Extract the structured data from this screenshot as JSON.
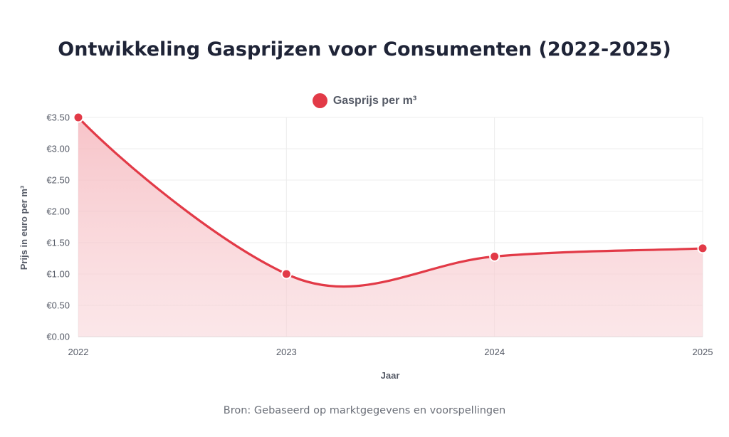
{
  "title": "Ontwikkeling Gasprijzen voor Consumenten (2022-2025)",
  "source": "Bron: Gebaseerd op marktgegevens en voorspellingen",
  "colors": {
    "series": "#e23a47",
    "fill": "#f8c6cb",
    "grid": "#ececec",
    "text": "#555a66"
  },
  "chart_data": {
    "type": "line",
    "x": [
      "2022",
      "2023",
      "2024",
      "2025"
    ],
    "series": [
      {
        "name": "Gasprijs per m³",
        "values": [
          3.5,
          1.0,
          1.28,
          1.41
        ]
      }
    ],
    "xlabel": "Jaar",
    "ylabel": "Prijs in euro per m³",
    "ylim": [
      0,
      3.5
    ],
    "yticks": [
      0,
      0.5,
      1.0,
      1.5,
      2.0,
      2.5,
      3.0,
      3.5
    ],
    "ytick_labels": [
      "€0.00",
      "€0.50",
      "€1.00",
      "€1.50",
      "€2.00",
      "€2.50",
      "€3.00",
      "€3.50"
    ],
    "grid": true,
    "smooth": true,
    "filled": true,
    "legend_position": "top-center"
  }
}
